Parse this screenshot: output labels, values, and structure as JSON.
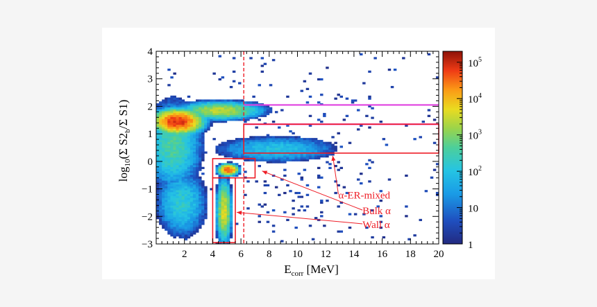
{
  "chart_data": {
    "type": "heatmap",
    "title": "",
    "xlabel": {
      "main": "E",
      "sub": "corr",
      "unit": " [MeV]"
    },
    "ylabel": {
      "pre": "log",
      "sub1": "10",
      "mid": "(Σ S2",
      "sub2": "b",
      "post": "/Σ S1)"
    },
    "xlim": [
      0,
      20
    ],
    "ylim": [
      -3,
      4
    ],
    "x_ticks": [
      "2",
      "4",
      "6",
      "8",
      "10",
      "12",
      "14",
      "16",
      "18",
      "20"
    ],
    "y_ticks": [
      "−3",
      "−2",
      "−1",
      "0",
      "1",
      "2",
      "3",
      "4"
    ],
    "colorbar": {
      "scale": "log",
      "range": [
        1,
        200000
      ],
      "ticks": [
        {
          "value": 1,
          "label": "1"
        },
        {
          "value": 10,
          "label": "10"
        },
        {
          "value": 100,
          "label": "10",
          "exp": "2"
        },
        {
          "value": 1000,
          "label": "10",
          "exp": "3"
        },
        {
          "value": 10000,
          "label": "10",
          "exp": "4"
        },
        {
          "value": 100000,
          "label": "10",
          "exp": "5"
        }
      ]
    },
    "density_clusters": [
      {
        "name": "upper-band-peak",
        "x": 1.5,
        "y": 1.45,
        "sx": 1.1,
        "sy": 0.28,
        "log_peak": 4.9
      },
      {
        "name": "upper-band-tail",
        "x": 4.5,
        "y": 1.85,
        "sx": 2.0,
        "sy": 0.22,
        "log_peak": 3.4
      },
      {
        "name": "low-energy-spread",
        "x": 1.2,
        "y": 0.6,
        "sx": 1.4,
        "sy": 1.1,
        "log_peak": 2.6
      },
      {
        "name": "er-mixed-band",
        "x": 8.5,
        "y": 0.45,
        "sx": 3.2,
        "sy": 0.35,
        "log_peak": 2.0
      },
      {
        "name": "bulk-alpha",
        "x": 5.1,
        "y": -0.3,
        "sx": 0.45,
        "sy": 0.13,
        "log_peak": 4.6
      },
      {
        "name": "wall-alpha",
        "x": 4.8,
        "y": -1.8,
        "sx": 0.35,
        "sy": 0.75,
        "log_peak": 3.6
      },
      {
        "name": "lower-left-spread",
        "x": 1.8,
        "y": -1.5,
        "sx": 1.3,
        "sy": 0.9,
        "log_peak": 2.2
      }
    ],
    "dashed_cut": {
      "x": 6.2,
      "color": "#ee1c25"
    },
    "magenta_lines": [
      {
        "y": 2.05,
        "x0": 6.2,
        "x1": 20
      },
      {
        "y": 1.35,
        "x0": 6.2,
        "x1": 20
      }
    ],
    "regions": [
      {
        "name": "alpha-er-mixed-region",
        "x0": 6.2,
        "x1": 20,
        "y0": 0.3,
        "y1": 1.35
      },
      {
        "name": "bulk-alpha-region",
        "x0": 4.0,
        "x1": 7.0,
        "y0": -0.6,
        "y1": 0.1
      },
      {
        "name": "wall-alpha-region",
        "x0": 4.0,
        "x1": 5.6,
        "y0": -2.95,
        "y1": -0.6
      }
    ],
    "annotations": [
      {
        "text": "α-ER-mixed",
        "label_x": 12.9,
        "label_y": -1.35,
        "arrow_to_x": 12.5,
        "arrow_to_y": 0.2
      },
      {
        "text": "Bulk α",
        "label_x": 14.6,
        "label_y": -1.92,
        "arrow_to_x": 7.5,
        "arrow_to_y": -0.35
      },
      {
        "text": "Wall α",
        "label_x": 14.6,
        "label_y": -2.42,
        "arrow_to_x": 5.7,
        "arrow_to_y": -1.85
      }
    ],
    "colors": {
      "region": "#ee1c25",
      "magenta": "#e040e0"
    }
  }
}
